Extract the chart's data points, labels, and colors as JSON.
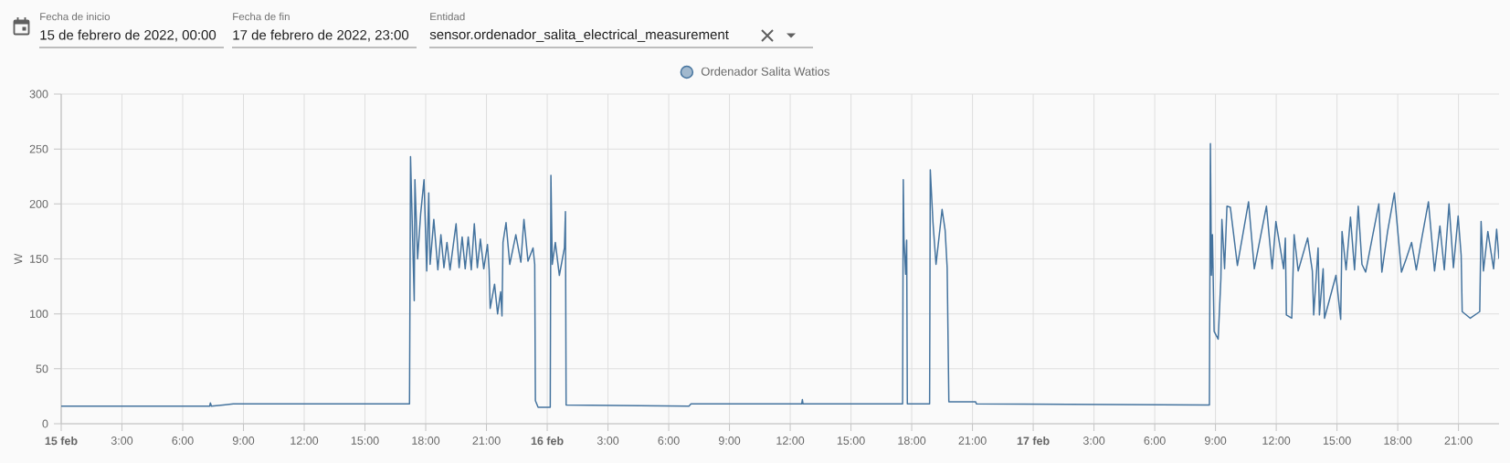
{
  "chart_data": {
    "type": "line",
    "ylabel": "W",
    "annotations": [
      "Fecha de inicio",
      "15 de febrero de 2022, 00:00",
      "Fecha de fin",
      "17 de febrero de 2022, 23:00",
      "Entidad",
      "sensor.ordenador_salita_electrical_measurement"
    ],
    "x": [
      "2022-02-15T00:00",
      "2022-02-15T07:20",
      "2022-02-15T07:22",
      "2022-02-15T07:25",
      "2022-02-15T08:00",
      "2022-02-15T08:30",
      "2022-02-15T17:12",
      "2022-02-15T17:15",
      "2022-02-15T17:26",
      "2022-02-15T17:28",
      "2022-02-15T17:36",
      "2022-02-15T17:45",
      "2022-02-15T17:55",
      "2022-02-15T18:03",
      "2022-02-15T18:09",
      "2022-02-15T18:13",
      "2022-02-15T18:24",
      "2022-02-15T18:36",
      "2022-02-15T18:45",
      "2022-02-15T18:54",
      "2022-02-15T19:03",
      "2022-02-15T19:12",
      "2022-02-15T19:30",
      "2022-02-15T19:39",
      "2022-02-15T19:48",
      "2022-02-15T19:57",
      "2022-02-15T20:06",
      "2022-02-15T20:15",
      "2022-02-15T20:24",
      "2022-02-15T20:33",
      "2022-02-15T20:42",
      "2022-02-15T20:52",
      "2022-02-15T21:03",
      "2022-02-15T21:08",
      "2022-02-15T21:11",
      "2022-02-15T21:24",
      "2022-02-15T21:33",
      "2022-02-15T21:42",
      "2022-02-15T21:46",
      "2022-02-15T21:49",
      "2022-02-15T21:58",
      "2022-02-15T22:09",
      "2022-02-15T22:27",
      "2022-02-15T22:42",
      "2022-02-15T22:51",
      "2022-02-15T23:03",
      "2022-02-15T23:18",
      "2022-02-15T23:23",
      "2022-02-15T23:25",
      "2022-02-15T23:33",
      "2022-02-16T00:09",
      "2022-02-16T00:11",
      "2022-02-16T00:15",
      "2022-02-16T00:24",
      "2022-02-16T00:36",
      "2022-02-16T00:51",
      "2022-02-16T00:54",
      "2022-02-16T00:56",
      "2022-02-16T07:00",
      "2022-02-16T07:06",
      "2022-02-16T12:34",
      "2022-02-16T12:36",
      "2022-02-16T12:38",
      "2022-02-16T17:33",
      "2022-02-16T17:35",
      "2022-02-16T17:37",
      "2022-02-16T17:42",
      "2022-02-16T17:45",
      "2022-02-16T17:47",
      "2022-02-16T18:53",
      "2022-02-16T18:55",
      "2022-02-16T19:03",
      "2022-02-16T19:12",
      "2022-02-16T19:30",
      "2022-02-16T19:39",
      "2022-02-16T19:45",
      "2022-02-16T19:50",
      "2022-02-16T21:09",
      "2022-02-16T21:12",
      "2022-02-17T08:42",
      "2022-02-17T08:45",
      "2022-02-17T08:48",
      "2022-02-17T08:51",
      "2022-02-17T08:56",
      "2022-02-17T09:08",
      "2022-02-17T09:16",
      "2022-02-17T09:19",
      "2022-02-17T09:27",
      "2022-02-17T09:34",
      "2022-02-17T09:44",
      "2022-02-17T10:05",
      "2022-02-17T10:38",
      "2022-02-17T10:55",
      "2022-02-17T11:31",
      "2022-02-17T11:48",
      "2022-02-17T11:59",
      "2022-02-17T12:22",
      "2022-02-17T12:27",
      "2022-02-17T12:30",
      "2022-02-17T12:46",
      "2022-02-17T12:53",
      "2022-02-17T13:05",
      "2022-02-17T13:33",
      "2022-02-17T13:47",
      "2022-02-17T13:51",
      "2022-02-17T14:04",
      "2022-02-17T14:08",
      "2022-02-17T14:19",
      "2022-02-17T14:23",
      "2022-02-17T14:57",
      "2022-02-17T15:11",
      "2022-02-17T15:15",
      "2022-02-17T15:27",
      "2022-02-17T15:40",
      "2022-02-17T15:52",
      "2022-02-17T16:03",
      "2022-02-17T16:14",
      "2022-02-17T16:25",
      "2022-02-17T16:45",
      "2022-02-17T17:04",
      "2022-02-17T17:13",
      "2022-02-17T17:30",
      "2022-02-17T17:50",
      "2022-02-17T18:11",
      "2022-02-17T18:25",
      "2022-02-17T18:41",
      "2022-02-17T18:55",
      "2022-02-17T19:12",
      "2022-02-17T19:31",
      "2022-02-17T19:49",
      "2022-02-17T20:05",
      "2022-02-17T20:18",
      "2022-02-17T20:32",
      "2022-02-17T20:45",
      "2022-02-17T20:59",
      "2022-02-17T21:08",
      "2022-02-17T21:11",
      "2022-02-17T21:35",
      "2022-02-17T22:03",
      "2022-02-17T22:07",
      "2022-02-17T22:14",
      "2022-02-17T22:27",
      "2022-02-17T22:44",
      "2022-02-17T22:53",
      "2022-02-17T23:00"
    ],
    "series": [
      {
        "name": "Ordenador Salita Watios",
        "color": "#44739e",
        "values": [
          16,
          16,
          19,
          16,
          17,
          18,
          18,
          243,
          112,
          222,
          150,
          191,
          222,
          139,
          210,
          145,
          186,
          140,
          172,
          142,
          165,
          140,
          182,
          142,
          170,
          141,
          170,
          140,
          182,
          142,
          168,
          141,
          163,
          140,
          105,
          127,
          100,
          120,
          98,
          165,
          183,
          145,
          172,
          147,
          186,
          148,
          160,
          145,
          21,
          15,
          15,
          226,
          145,
          165,
          135,
          160,
          193,
          17,
          16,
          18,
          18,
          22,
          18,
          18,
          222,
          168,
          136,
          167,
          18,
          18,
          231,
          183,
          145,
          195,
          176,
          142,
          20,
          20,
          18,
          17,
          255,
          135,
          172,
          84,
          77,
          132,
          186,
          141,
          198,
          197,
          144,
          202,
          141,
          198,
          141,
          184,
          141,
          169,
          99,
          96,
          172,
          139,
          169,
          139,
          99,
          160,
          99,
          141,
          96,
          135,
          95,
          175,
          140,
          188,
          140,
          198,
          145,
          138,
          170,
          200,
          138,
          175,
          210,
          138,
          150,
          165,
          140,
          170,
          202,
          139,
          180,
          140,
          200,
          142,
          189,
          153,
          102,
          96,
          102,
          184,
          139,
          175,
          141,
          177,
          150
        ]
      }
    ],
    "xlim": [
      "2022-02-15T00:00",
      "2022-02-17T23:00"
    ],
    "xticks": [
      {
        "value": "2022-02-15T00:00",
        "label": "15 feb"
      },
      {
        "value": "2022-02-15T03:00",
        "label": "3:00"
      },
      {
        "value": "2022-02-15T06:00",
        "label": "6:00"
      },
      {
        "value": "2022-02-15T09:00",
        "label": "9:00"
      },
      {
        "value": "2022-02-15T12:00",
        "label": "12:00"
      },
      {
        "value": "2022-02-15T15:00",
        "label": "15:00"
      },
      {
        "value": "2022-02-15T18:00",
        "label": "18:00"
      },
      {
        "value": "2022-02-15T21:00",
        "label": "21:00"
      },
      {
        "value": "2022-02-16T00:00",
        "label": "16 feb"
      },
      {
        "value": "2022-02-16T03:00",
        "label": "3:00"
      },
      {
        "value": "2022-02-16T06:00",
        "label": "6:00"
      },
      {
        "value": "2022-02-16T09:00",
        "label": "9:00"
      },
      {
        "value": "2022-02-16T12:00",
        "label": "12:00"
      },
      {
        "value": "2022-02-16T15:00",
        "label": "15:00"
      },
      {
        "value": "2022-02-16T18:00",
        "label": "18:00"
      },
      {
        "value": "2022-02-16T21:00",
        "label": "21:00"
      },
      {
        "value": "2022-02-17T00:00",
        "label": "17 feb"
      },
      {
        "value": "2022-02-17T03:00",
        "label": "3:00"
      },
      {
        "value": "2022-02-17T06:00",
        "label": "6:00"
      },
      {
        "value": "2022-02-17T09:00",
        "label": "9:00"
      },
      {
        "value": "2022-02-17T12:00",
        "label": "12:00"
      },
      {
        "value": "2022-02-17T15:00",
        "label": "15:00"
      },
      {
        "value": "2022-02-17T18:00",
        "label": "18:00"
      },
      {
        "value": "2022-02-17T21:00",
        "label": "21:00"
      }
    ],
    "ylim": [
      0,
      300
    ],
    "yticks": [
      0,
      50,
      100,
      150,
      200,
      250,
      300
    ],
    "grid": true,
    "legend": "top",
    "line_style": "solid"
  }
}
